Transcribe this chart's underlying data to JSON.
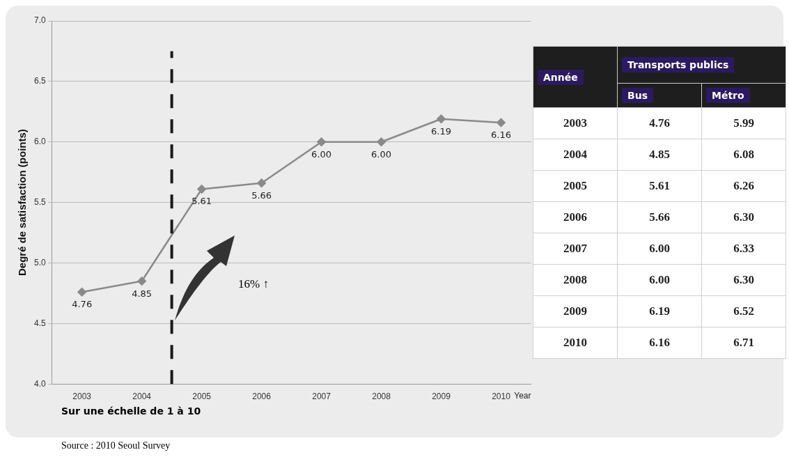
{
  "chart_data": [
    {
      "type": "line",
      "xlabel": "Year",
      "ylabel": "Degré de satisfaction (points)",
      "x": [
        2003,
        2004,
        2005,
        2006,
        2007,
        2008,
        2009,
        2010
      ],
      "xlim": [
        2002.5,
        2010.5
      ],
      "xticks": [
        2003,
        2004,
        2005,
        2006,
        2007,
        2008,
        2009,
        2010
      ],
      "ylim": [
        4,
        7
      ],
      "yticks": [
        {
          "value": 4,
          "label": "4.0"
        },
        {
          "value": 4.5,
          "label": "4.5"
        },
        {
          "value": 5,
          "label": "5.0"
        },
        {
          "value": 5.5,
          "label": "5.5"
        },
        {
          "value": 6,
          "label": "6.0"
        },
        {
          "value": 6.5,
          "label": "6.5"
        },
        {
          "value": 7,
          "label": "7.0"
        }
      ],
      "series": [
        {
          "color": "#8a8a8a",
          "values": [
            4.76,
            4.85,
            5.61,
            5.66,
            6.0,
            6.0,
            6.19,
            6.16
          ],
          "value_labels": [
            "4.76",
            "4.85",
            "5.61",
            "5.66",
            "6.00",
            "6.00",
            "6.19",
            "6.16"
          ]
        }
      ],
      "marker": "diamond",
      "line_style": "solid",
      "grid": "y",
      "legend": false,
      "ref_lines": [
        {
          "axis": "x",
          "value": 2004.5,
          "line_style": "dashed",
          "color": "#1a1a1a"
        }
      ],
      "annotations": [
        "16% ↑",
        "Sur une échelle de 1 à 10",
        "Source : 2010 Seoul Survey"
      ]
    },
    {
      "type": "heatmap",
      "ylabel": "Année",
      "xlabel": "Transports publics",
      "categories": [
        "Bus",
        "Métro"
      ],
      "y_categories": [
        "2003",
        "2004",
        "2005",
        "2006",
        "2007",
        "2008",
        "2009",
        "2010"
      ],
      "cells": [
        [
          4.76,
          5.99
        ],
        [
          4.85,
          6.08
        ],
        [
          5.61,
          6.26
        ],
        [
          5.66,
          6.3
        ],
        [
          6.0,
          6.33
        ],
        [
          6.0,
          6.3
        ],
        [
          6.19,
          6.52
        ],
        [
          6.16,
          6.71
        ]
      ],
      "cell_labels": [
        [
          "4.76",
          "5.99"
        ],
        [
          "4.85",
          "6.08"
        ],
        [
          "5.61",
          "6.26"
        ],
        [
          "5.66",
          "6.30"
        ],
        [
          "6.00",
          "6.33"
        ],
        [
          "6.00",
          "6.30"
        ],
        [
          "6.19",
          "6.52"
        ],
        [
          "6.16",
          "6.71"
        ]
      ]
    }
  ]
}
